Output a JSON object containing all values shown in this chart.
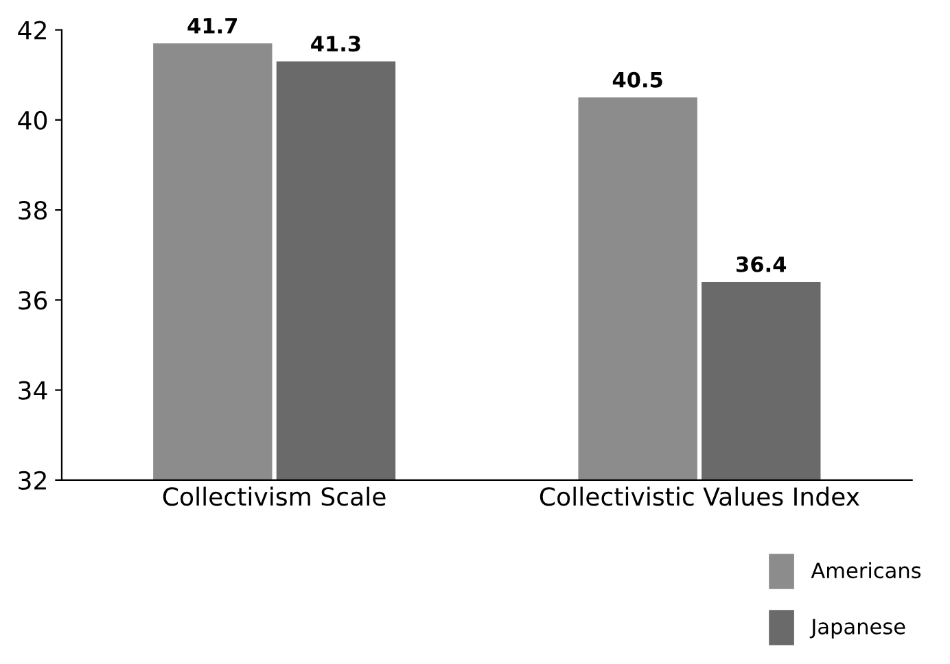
{
  "chart_data": {
    "type": "bar",
    "categories": [
      "Collectivism Scale",
      "Collectivistic Values Index"
    ],
    "series": [
      {
        "name": "Americans",
        "color": "#8c8c8c",
        "values": [
          41.7,
          40.5
        ]
      },
      {
        "name": "Japanese",
        "color": "#6a6a6a",
        "values": [
          41.3,
          36.4
        ]
      }
    ],
    "ylim": [
      32,
      42
    ],
    "yticks": [
      32,
      34,
      36,
      38,
      40,
      42
    ],
    "data_labels": true,
    "legend": "bottom right",
    "grid": false
  }
}
